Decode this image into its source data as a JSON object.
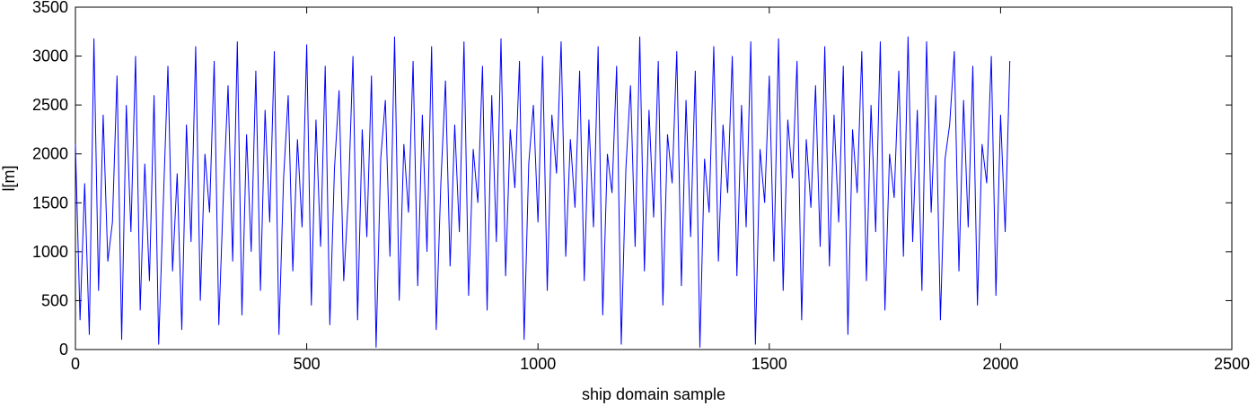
{
  "chart_data": {
    "type": "line",
    "x_label": "ship domain sample",
    "y_label": "l[m]",
    "x": [
      0,
      10,
      20,
      30,
      40,
      50,
      60,
      70,
      80,
      90,
      100,
      110,
      120,
      130,
      140,
      150,
      160,
      170,
      180,
      190,
      200,
      210,
      220,
      230,
      240,
      250,
      260,
      270,
      280,
      290,
      300,
      310,
      320,
      330,
      340,
      350,
      360,
      370,
      380,
      390,
      400,
      410,
      420,
      430,
      440,
      450,
      460,
      470,
      480,
      490,
      500,
      510,
      520,
      530,
      540,
      550,
      560,
      570,
      580,
      590,
      600,
      610,
      620,
      630,
      640,
      650,
      660,
      670,
      680,
      690,
      700,
      710,
      720,
      730,
      740,
      750,
      760,
      770,
      780,
      790,
      800,
      810,
      820,
      830,
      840,
      850,
      860,
      870,
      880,
      890,
      900,
      910,
      920,
      930,
      940,
      950,
      960,
      970,
      980,
      990,
      1000,
      1010,
      1020,
      1030,
      1040,
      1050,
      1060,
      1070,
      1080,
      1090,
      1100,
      1110,
      1120,
      1130,
      1140,
      1150,
      1160,
      1170,
      1180,
      1190,
      1200,
      1210,
      1220,
      1230,
      1240,
      1250,
      1260,
      1270,
      1280,
      1290,
      1300,
      1310,
      1320,
      1330,
      1340,
      1350,
      1360,
      1370,
      1380,
      1390,
      1400,
      1410,
      1420,
      1430,
      1440,
      1450,
      1460,
      1470,
      1480,
      1490,
      1500,
      1510,
      1520,
      1530,
      1540,
      1550,
      1560,
      1570,
      1580,
      1590,
      1600,
      1610,
      1620,
      1630,
      1640,
      1650,
      1660,
      1670,
      1680,
      1690,
      1700,
      1710,
      1720,
      1730,
      1740,
      1750,
      1760,
      1770,
      1780,
      1790,
      1800,
      1810,
      1820,
      1830,
      1840,
      1850,
      1860,
      1870,
      1880,
      1890,
      1900,
      1910,
      1920,
      1930,
      1940,
      1950,
      1960,
      1970,
      1980,
      1990,
      2000,
      2010,
      2020
    ],
    "series": [
      {
        "color": "#0000ff",
        "values": [
          2100,
          300,
          1700,
          150,
          3180,
          600,
          2400,
          900,
          1300,
          2800,
          100,
          2500,
          1200,
          3000,
          400,
          1900,
          700,
          2600,
          50,
          1500,
          2900,
          800,
          1800,
          200,
          2300,
          1100,
          3100,
          500,
          2000,
          1400,
          2950,
          250,
          1600,
          2700,
          900,
          3150,
          350,
          2200,
          1000,
          2850,
          600,
          2450,
          1300,
          3050,
          150,
          1750,
          2600,
          800,
          2150,
          1250,
          3120,
          450,
          2350,
          1050,
          2900,
          250,
          1850,
          2650,
          700,
          1550,
          3000,
          300,
          2250,
          1150,
          2800,
          20,
          1950,
          2550,
          950,
          3200,
          500,
          2100,
          1400,
          2950,
          650,
          2400,
          1000,
          3100,
          200,
          1700,
          2750,
          850,
          2300,
          1200,
          3150,
          550,
          2050,
          1500,
          2900,
          400,
          2600,
          1100,
          3180,
          750,
          2250,
          1650,
          2950,
          100,
          1900,
          2500,
          1300,
          3000,
          600,
          2400,
          1800,
          3150,
          950,
          2150,
          1450,
          2850,
          700,
          2350,
          1250,
          3100,
          350,
          2000,
          1600,
          2900,
          50,
          1850,
          2700,
          1050,
          3200,
          800,
          2450,
          1350,
          2950,
          450,
          2200,
          1700,
          3050,
          650,
          2550,
          1150,
          2850,
          20,
          1950,
          1400,
          3100,
          900,
          2300,
          1600,
          3000,
          750,
          2500,
          1250,
          3150,
          50,
          2050,
          1500,
          2800,
          900,
          3180,
          600,
          2350,
          1750,
          2950,
          300,
          2150,
          1450,
          2700,
          1050,
          3100,
          850,
          2400,
          1300,
          2900,
          150,
          2250,
          1600,
          3050,
          700,
          2500,
          1200,
          3150,
          400,
          2000,
          1550,
          2850,
          950,
          3200,
          1100,
          2450,
          600,
          3150,
          1400,
          2600,
          300,
          1950,
          2300,
          3050,
          800,
          2550,
          1250,
          2900,
          450,
          2100,
          1700,
          3000,
          550,
          2400,
          1200,
          2950
        ]
      }
    ],
    "xlim": [
      0,
      2500
    ],
    "xticks": [
      0,
      500,
      1000,
      1500,
      2000,
      2500
    ],
    "ylim": [
      0,
      3500
    ],
    "yticks": [
      0,
      500,
      1000,
      1500,
      2000,
      2500,
      3000,
      3500
    ]
  }
}
